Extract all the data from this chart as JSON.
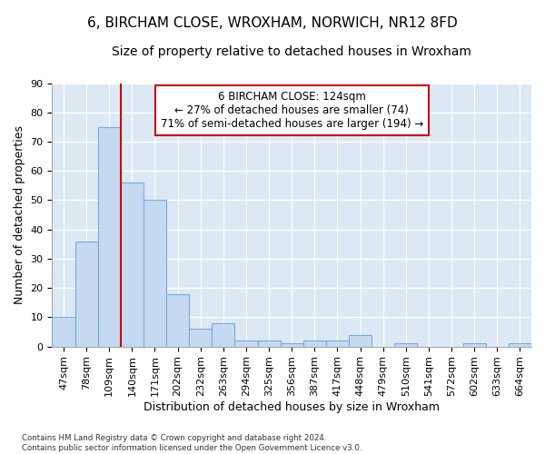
{
  "title": "6, BIRCHAM CLOSE, WROXHAM, NORWICH, NR12 8FD",
  "subtitle": "Size of property relative to detached houses in Wroxham",
  "xlabel": "Distribution of detached houses by size in Wroxham",
  "ylabel": "Number of detached properties",
  "bar_values": [
    10,
    36,
    75,
    56,
    50,
    18,
    6,
    8,
    2,
    2,
    1,
    2,
    2,
    4,
    0,
    1,
    0,
    0,
    1,
    0,
    1
  ],
  "bar_labels": [
    "47sqm",
    "78sqm",
    "109sqm",
    "140sqm",
    "171sqm",
    "202sqm",
    "232sqm",
    "263sqm",
    "294sqm",
    "325sqm",
    "356sqm",
    "387sqm",
    "417sqm",
    "448sqm",
    "479sqm",
    "510sqm",
    "541sqm",
    "572sqm",
    "602sqm",
    "633sqm",
    "664sqm"
  ],
  "bar_color": "#c5d9f0",
  "bar_edge_color": "#7aaadc",
  "bar_edge_width": 0.8,
  "vline_bin": 3,
  "vline_color": "#cc0000",
  "annotation_text": "6 BIRCHAM CLOSE: 124sqm\n← 27% of detached houses are smaller (74)\n71% of semi-detached houses are larger (194) →",
  "ylim": [
    0,
    90
  ],
  "yticks": [
    0,
    10,
    20,
    30,
    40,
    50,
    60,
    70,
    80,
    90
  ],
  "title_fontsize": 11,
  "subtitle_fontsize": 10,
  "xlabel_fontsize": 9,
  "ylabel_fontsize": 9,
  "tick_fontsize": 8,
  "footer_text": "Contains HM Land Registry data © Crown copyright and database right 2024.\nContains public sector information licensed under the Open Government Licence v3.0.",
  "fig_bg_color": "#ffffff",
  "axes_bg_color": "#dce9f5",
  "grid_color": "#ffffff"
}
